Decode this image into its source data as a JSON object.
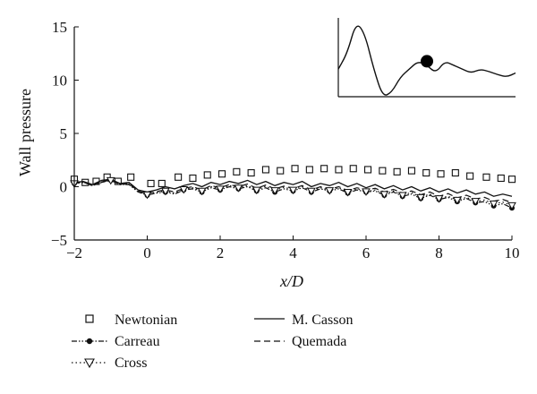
{
  "chart_data": {
    "type": "line",
    "xlabel": "x/D",
    "ylabel": "Wall pressure",
    "xlim": [
      -2,
      10
    ],
    "ylim": [
      -5,
      15
    ],
    "xticks": [
      "−2",
      "0",
      "2",
      "4",
      "6",
      "8",
      "10"
    ],
    "xtick_values": [
      -2,
      0,
      2,
      4,
      6,
      8,
      10
    ],
    "yticks": [
      "−5",
      "0",
      "5",
      "10",
      "15"
    ],
    "ytick_values": [
      -5,
      0,
      5,
      10,
      15
    ],
    "grid": false,
    "legend_position": "bottom",
    "series": [
      {
        "name": "Newtonian",
        "style": "markers",
        "marker": "square-open",
        "x": [
          -2.0,
          -1.7,
          -1.4,
          -1.1,
          -0.8,
          -0.45,
          0.1,
          0.4,
          0.85,
          1.25,
          1.65,
          2.05,
          2.45,
          2.85,
          3.25,
          3.65,
          4.05,
          4.45,
          4.85,
          5.25,
          5.65,
          6.05,
          6.45,
          6.85,
          7.25,
          7.65,
          8.05,
          8.45,
          8.85,
          9.3,
          9.7,
          10.0
        ],
        "y": [
          0.7,
          0.4,
          0.5,
          0.9,
          0.5,
          0.9,
          0.3,
          0.3,
          0.9,
          0.8,
          1.1,
          1.2,
          1.4,
          1.3,
          1.6,
          1.5,
          1.7,
          1.6,
          1.7,
          1.6,
          1.7,
          1.6,
          1.5,
          1.4,
          1.5,
          1.3,
          1.2,
          1.3,
          1.0,
          0.9,
          0.8,
          0.7
        ]
      },
      {
        "name": "M. Casson",
        "style": "solid",
        "x": [
          -2.0,
          -1.75,
          -1.5,
          -1.25,
          -1.0,
          -0.75,
          -0.5,
          -0.25,
          0.0,
          0.25,
          0.5,
          0.75,
          1.0,
          1.25,
          1.5,
          1.75,
          2.0,
          2.25,
          2.5,
          2.75,
          3.0,
          3.25,
          3.5,
          3.75,
          4.0,
          4.25,
          4.5,
          4.75,
          5.0,
          5.25,
          5.5,
          5.75,
          6.0,
          6.25,
          6.5,
          6.75,
          7.0,
          7.25,
          7.5,
          7.75,
          8.0,
          8.25,
          8.5,
          8.75,
          9.0,
          9.25,
          9.5,
          9.75,
          10.0
        ],
        "y": [
          0.4,
          0.5,
          0.2,
          0.6,
          0.7,
          0.3,
          0.4,
          -0.3,
          -0.5,
          -0.3,
          0.0,
          -0.2,
          0.1,
          0.3,
          0.0,
          0.4,
          0.2,
          0.5,
          0.3,
          0.6,
          0.2,
          0.5,
          0.1,
          0.4,
          0.2,
          0.5,
          0.0,
          0.3,
          0.1,
          0.4,
          0.0,
          0.3,
          -0.1,
          0.2,
          -0.2,
          0.1,
          -0.3,
          0.0,
          -0.4,
          -0.1,
          -0.5,
          -0.2,
          -0.6,
          -0.3,
          -0.7,
          -0.5,
          -0.9,
          -0.7,
          -0.9
        ]
      },
      {
        "name": "Carreau",
        "style": "dash-dot-dot",
        "marker": "circle-filled",
        "x": [
          -2.0,
          -1.75,
          -1.5,
          -1.25,
          -1.0,
          -0.75,
          -0.5,
          -0.25,
          0.0,
          0.25,
          0.5,
          0.75,
          1.0,
          1.25,
          1.5,
          1.75,
          2.0,
          2.25,
          2.5,
          2.75,
          3.0,
          3.25,
          3.5,
          3.75,
          4.0,
          4.25,
          4.5,
          4.75,
          5.0,
          5.25,
          5.5,
          5.75,
          6.0,
          6.25,
          6.5,
          6.75,
          7.0,
          7.25,
          7.5,
          7.75,
          8.0,
          8.25,
          8.5,
          8.75,
          9.0,
          9.25,
          9.5,
          9.75,
          10.0
        ],
        "y": [
          0.3,
          0.4,
          0.1,
          0.4,
          0.6,
          0.2,
          0.2,
          -0.5,
          -0.8,
          -0.6,
          -0.5,
          -0.7,
          -0.3,
          -0.2,
          -0.5,
          -0.1,
          -0.3,
          0.0,
          -0.2,
          0.0,
          -0.4,
          -0.1,
          -0.5,
          -0.2,
          -0.4,
          -0.1,
          -0.5,
          -0.2,
          -0.4,
          -0.2,
          -0.6,
          -0.3,
          -0.5,
          -0.4,
          -0.8,
          -0.5,
          -0.9,
          -0.7,
          -1.1,
          -0.8,
          -1.2,
          -1.0,
          -1.4,
          -1.1,
          -1.5,
          -1.4,
          -1.8,
          -1.6,
          -2.0
        ]
      },
      {
        "name": "Quemada",
        "style": "dashed",
        "x": [
          -2.0,
          -1.75,
          -1.5,
          -1.25,
          -1.0,
          -0.75,
          -0.5,
          -0.25,
          0.0,
          0.25,
          0.5,
          0.75,
          1.0,
          1.25,
          1.5,
          1.75,
          2.0,
          2.25,
          2.5,
          2.75,
          3.0,
          3.25,
          3.5,
          3.75,
          4.0,
          4.25,
          4.5,
          4.75,
          5.0,
          5.25,
          5.5,
          5.75,
          6.0,
          6.25,
          6.5,
          6.75,
          7.0,
          7.25,
          7.5,
          7.75,
          8.0,
          8.25,
          8.5,
          8.75,
          9.0,
          9.25,
          9.5,
          9.75,
          10.0
        ],
        "y": [
          0.35,
          0.45,
          0.15,
          0.5,
          0.65,
          0.25,
          0.3,
          -0.4,
          -0.65,
          -0.45,
          -0.3,
          -0.5,
          -0.15,
          0.0,
          -0.3,
          0.1,
          -0.1,
          0.2,
          0.0,
          0.25,
          -0.15,
          0.15,
          -0.2,
          0.05,
          -0.15,
          0.1,
          -0.3,
          0.0,
          -0.25,
          0.0,
          -0.35,
          -0.1,
          -0.3,
          -0.15,
          -0.5,
          -0.25,
          -0.6,
          -0.4,
          -0.75,
          -0.5,
          -0.9,
          -0.65,
          -1.05,
          -0.8,
          -1.15,
          -1.0,
          -1.35,
          -1.2,
          -1.5
        ]
      },
      {
        "name": "Cross",
        "style": "dotted",
        "marker": "triangle-down-open",
        "x": [
          -2.0,
          -1.75,
          -1.5,
          -1.25,
          -1.0,
          -0.75,
          -0.5,
          -0.25,
          0.0,
          0.25,
          0.5,
          0.75,
          1.0,
          1.25,
          1.5,
          1.75,
          2.0,
          2.25,
          2.5,
          2.75,
          3.0,
          3.25,
          3.5,
          3.75,
          4.0,
          4.25,
          4.5,
          4.75,
          5.0,
          5.25,
          5.5,
          5.75,
          6.0,
          6.25,
          6.5,
          6.75,
          7.0,
          7.25,
          7.5,
          7.75,
          8.0,
          8.25,
          8.5,
          8.75,
          9.0,
          9.25,
          9.5,
          9.75,
          10.0
        ],
        "y": [
          0.3,
          0.4,
          0.1,
          0.45,
          0.6,
          0.2,
          0.25,
          -0.45,
          -0.75,
          -0.55,
          -0.4,
          -0.6,
          -0.25,
          -0.1,
          -0.4,
          0.0,
          -0.2,
          0.1,
          -0.1,
          0.1,
          -0.3,
          0.05,
          -0.35,
          -0.05,
          -0.3,
          0.0,
          -0.4,
          -0.1,
          -0.35,
          -0.1,
          -0.5,
          -0.2,
          -0.45,
          -0.3,
          -0.7,
          -0.4,
          -0.8,
          -0.55,
          -1.0,
          -0.7,
          -1.1,
          -0.9,
          -1.25,
          -1.0,
          -1.35,
          -1.25,
          -1.6,
          -1.45,
          -1.75
        ]
      }
    ],
    "legend": {
      "column1": [
        "Newtonian",
        "Carreau",
        "Cross"
      ],
      "column2": [
        "M. Casson",
        "Quemada"
      ]
    },
    "inset": {
      "description_shape": "artery-like wall profile with marked probe point",
      "curve_x": [
        0,
        0.05,
        0.1,
        0.15,
        0.2,
        0.25,
        0.3,
        0.35,
        0.4,
        0.45,
        0.5,
        0.55,
        0.6,
        0.65,
        0.7,
        0.75,
        0.8,
        0.85,
        0.9,
        0.95,
        1.0
      ],
      "curve_y": [
        0.35,
        0.55,
        0.95,
        0.8,
        0.35,
        0.0,
        0.05,
        0.25,
        0.35,
        0.45,
        0.4,
        0.3,
        0.45,
        0.4,
        0.35,
        0.3,
        0.35,
        0.32,
        0.28,
        0.25,
        0.3
      ],
      "marker_x": 0.5,
      "marker_y": 0.45
    }
  }
}
